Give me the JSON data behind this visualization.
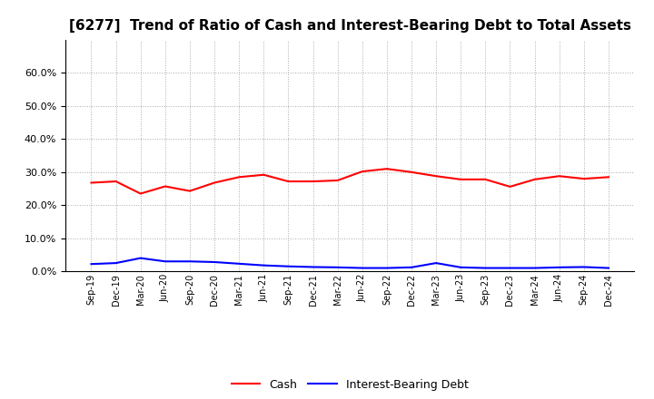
{
  "title": "[6277]  Trend of Ratio of Cash and Interest-Bearing Debt to Total Assets",
  "x_labels": [
    "Sep-19",
    "Dec-19",
    "Mar-20",
    "Jun-20",
    "Sep-20",
    "Dec-20",
    "Mar-21",
    "Jun-21",
    "Sep-21",
    "Dec-21",
    "Mar-22",
    "Jun-22",
    "Sep-22",
    "Dec-22",
    "Mar-23",
    "Jun-23",
    "Sep-23",
    "Dec-23",
    "Mar-24",
    "Jun-24",
    "Sep-24",
    "Dec-24"
  ],
  "cash": [
    0.268,
    0.272,
    0.235,
    0.257,
    0.243,
    0.268,
    0.285,
    0.292,
    0.272,
    0.272,
    0.275,
    0.302,
    0.31,
    0.3,
    0.288,
    0.278,
    0.278,
    0.256,
    0.278,
    0.288,
    0.28,
    0.285
  ],
  "debt": [
    0.022,
    0.025,
    0.04,
    0.03,
    0.03,
    0.028,
    0.023,
    0.018,
    0.015,
    0.013,
    0.012,
    0.01,
    0.01,
    0.012,
    0.025,
    0.012,
    0.01,
    0.01,
    0.01,
    0.012,
    0.013,
    0.01
  ],
  "cash_color": "#FF0000",
  "debt_color": "#0000FF",
  "background_color": "#FFFFFF",
  "grid_color": "#AAAAAA",
  "ylim": [
    0.0,
    0.7
  ],
  "yticks": [
    0.0,
    0.1,
    0.2,
    0.3,
    0.4,
    0.5,
    0.6
  ],
  "title_fontsize": 11,
  "legend_labels": [
    "Cash",
    "Interest-Bearing Debt"
  ],
  "line_width": 1.5
}
